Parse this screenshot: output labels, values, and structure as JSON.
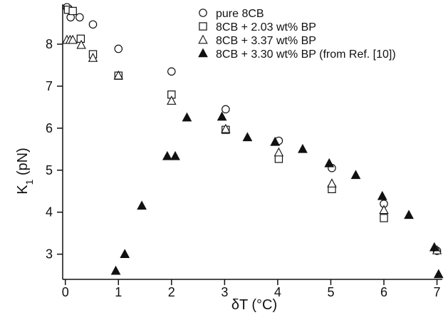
{
  "chart_data": {
    "type": "scatter",
    "xlabel": "δT (°C)",
    "ylabel": {
      "prefix": "K",
      "subscript": "1",
      "suffix": " (pN)"
    },
    "xlim": [
      -0.05,
      7.1
    ],
    "ylim": [
      2.4,
      8.95
    ],
    "xticks": [
      0,
      1,
      2,
      3,
      4,
      5,
      6,
      7
    ],
    "yticks": [
      3,
      4,
      5,
      6,
      7,
      8
    ],
    "legend_position": "top-right",
    "series": [
      {
        "name": "pure 8CB",
        "marker": "circle-open",
        "color": "#111111",
        "points": [
          [
            0.03,
            8.88
          ],
          [
            0.1,
            8.64
          ],
          [
            0.27,
            8.64
          ],
          [
            0.52,
            8.47
          ],
          [
            1.0,
            7.89
          ],
          [
            2.0,
            7.35
          ],
          [
            3.02,
            6.45
          ],
          [
            4.02,
            5.7
          ],
          [
            5.02,
            5.05
          ],
          [
            6.0,
            4.2
          ],
          [
            7.0,
            3.08
          ]
        ]
      },
      {
        "name": "8CB + 2.03 wt% BP",
        "marker": "square-open",
        "color": "#111111",
        "points": [
          [
            0.05,
            8.82
          ],
          [
            0.14,
            8.79
          ],
          [
            0.29,
            8.13
          ],
          [
            0.52,
            7.76
          ],
          [
            1.0,
            7.25
          ],
          [
            2.0,
            6.8
          ],
          [
            3.02,
            5.96
          ],
          [
            4.02,
            5.27
          ],
          [
            5.02,
            4.55
          ],
          [
            6.0,
            3.86
          ]
        ]
      },
      {
        "name": "8CB + 3.37 wt% BP",
        "marker": "triangle-open",
        "color": "#111111",
        "points": [
          [
            0.03,
            8.1
          ],
          [
            0.09,
            8.1
          ],
          [
            0.14,
            8.1
          ],
          [
            0.3,
            7.98
          ],
          [
            0.52,
            7.67
          ],
          [
            1.0,
            7.25
          ],
          [
            2.0,
            6.65
          ],
          [
            3.02,
            5.98
          ],
          [
            4.02,
            5.42
          ],
          [
            5.02,
            4.68
          ],
          [
            6.0,
            4.05
          ],
          [
            7.0,
            3.09
          ]
        ]
      },
      {
        "name": "8CB + 3.30 wt% BP (from Ref. [10])",
        "marker": "triangle-filled",
        "color": "#111111",
        "points": [
          [
            0.95,
            2.6
          ],
          [
            1.12,
            3.0
          ],
          [
            1.44,
            4.15
          ],
          [
            1.92,
            5.33
          ],
          [
            2.07,
            5.33
          ],
          [
            2.29,
            6.25
          ],
          [
            2.95,
            6.27
          ],
          [
            3.43,
            5.78
          ],
          [
            3.95,
            5.67
          ],
          [
            4.47,
            5.5
          ],
          [
            4.97,
            5.16
          ],
          [
            5.47,
            4.88
          ],
          [
            5.97,
            4.38
          ],
          [
            6.47,
            3.93
          ],
          [
            6.95,
            3.16
          ],
          [
            7.03,
            2.52
          ]
        ]
      }
    ]
  }
}
